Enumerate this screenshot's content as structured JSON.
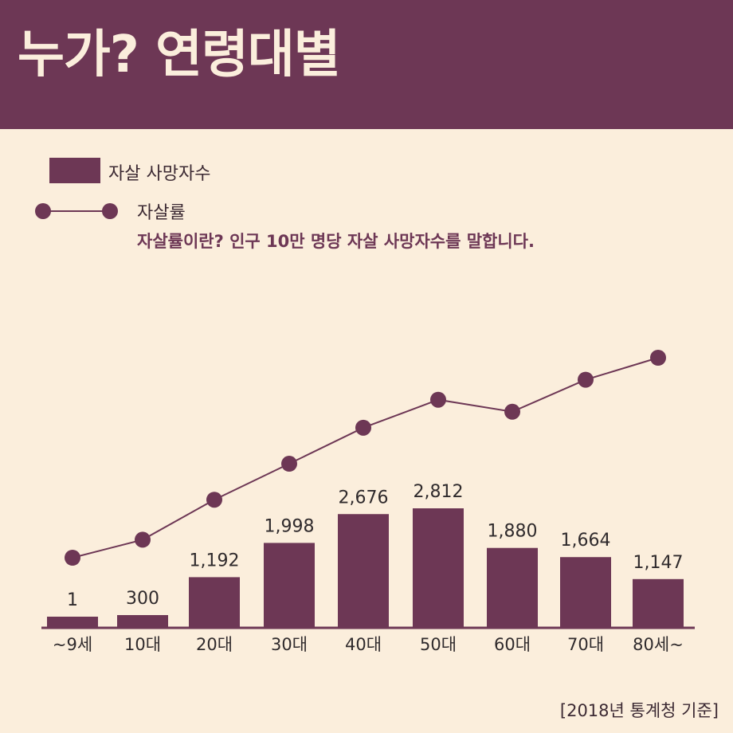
{
  "header": {
    "title": "누가? 연령대별"
  },
  "legend": {
    "bar_label": "자살 사망자수",
    "line_label": "자살률",
    "note_prefix": "자살률이란? ",
    "note_bold": "인구 10만 명당 자살 사망자수",
    "note_suffix": "를 말합니다."
  },
  "source": "[2018년 통계청 기준]",
  "colors": {
    "accent": "#6d3755",
    "background": "#fbeedc",
    "text": "#3c2a33"
  },
  "chart_data": {
    "type": "bar",
    "categories": [
      "~9세",
      "10대",
      "20대",
      "30대",
      "40대",
      "50대",
      "60대",
      "70대",
      "80세~"
    ],
    "series": [
      {
        "name": "자살 사망자수",
        "type": "bar",
        "values": [
          1,
          300,
          1192,
          1998,
          2676,
          2812,
          1880,
          1664,
          1147
        ],
        "labels": [
          "1",
          "300",
          "1,192",
          "1,998",
          "2,676",
          "2,812",
          "1,880",
          "1,664",
          "1,147"
        ]
      },
      {
        "name": "자살률",
        "type": "line",
        "relative_levels": [
          0.0,
          0.09,
          0.29,
          0.47,
          0.65,
          0.79,
          0.73,
          0.89,
          1.0
        ]
      }
    ],
    "xlabel": "",
    "ylabel": "",
    "grid": false
  }
}
